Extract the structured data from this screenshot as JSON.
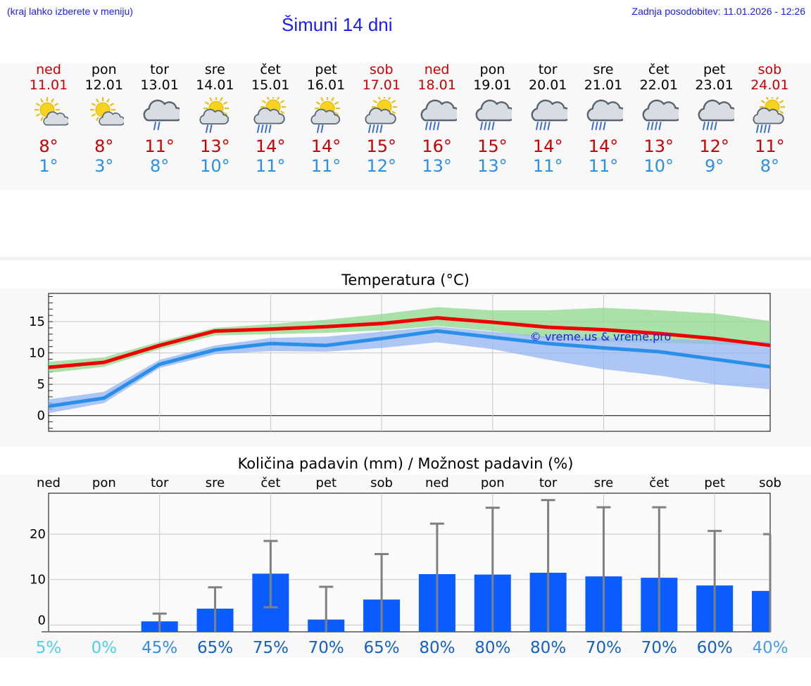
{
  "header": {
    "hint": "(kraj lahko izberete v meniju)",
    "title": "Šimuni 14 dni",
    "updated": "Zadnja posodobitev: 11.01.2026 - 12:26"
  },
  "colors": {
    "weekday": "#000000",
    "weekend": "#cc0000",
    "tmax": "#cc0000",
    "tmin": "#2a8fe8",
    "link": "#1a1aff"
  },
  "days": [
    {
      "name": "ned",
      "date": "11.01",
      "weekend": true,
      "icon": "sun-cloud-icon",
      "tmax": "8°",
      "tmin": "1°"
    },
    {
      "name": "pon",
      "date": "12.01",
      "weekend": false,
      "icon": "sun-cloud-icon",
      "tmax": "8°",
      "tmin": "3°"
    },
    {
      "name": "tor",
      "date": "13.01",
      "weekend": false,
      "icon": "cloud-rain-icon",
      "tmax": "11°",
      "tmin": "8°"
    },
    {
      "name": "sre",
      "date": "14.01",
      "weekend": false,
      "icon": "sun-cloud-rain-icon",
      "tmax": "13°",
      "tmin": "10°"
    },
    {
      "name": "čet",
      "date": "15.01",
      "weekend": false,
      "icon": "sun-cloud-heavy-rain-icon",
      "tmax": "14°",
      "tmin": "11°"
    },
    {
      "name": "pet",
      "date": "16.01",
      "weekend": false,
      "icon": "sun-cloud-rain-icon",
      "tmax": "14°",
      "tmin": "11°"
    },
    {
      "name": "sob",
      "date": "17.01",
      "weekend": true,
      "icon": "sun-cloud-heavy-rain-icon",
      "tmax": "15°",
      "tmin": "12°"
    },
    {
      "name": "ned",
      "date": "18.01",
      "weekend": true,
      "icon": "cloud-heavy-rain-icon",
      "tmax": "16°",
      "tmin": "13°"
    },
    {
      "name": "pon",
      "date": "19.01",
      "weekend": false,
      "icon": "cloud-heavy-rain-icon",
      "tmax": "15°",
      "tmin": "13°"
    },
    {
      "name": "tor",
      "date": "20.01",
      "weekend": false,
      "icon": "cloud-heavy-rain-icon",
      "tmax": "14°",
      "tmin": "11°"
    },
    {
      "name": "sre",
      "date": "21.01",
      "weekend": false,
      "icon": "cloud-heavy-rain-icon",
      "tmax": "14°",
      "tmin": "11°"
    },
    {
      "name": "čet",
      "date": "22.01",
      "weekend": false,
      "icon": "cloud-heavy-rain-icon",
      "tmax": "13°",
      "tmin": "10°"
    },
    {
      "name": "pet",
      "date": "23.01",
      "weekend": false,
      "icon": "cloud-heavy-rain-icon",
      "tmax": "12°",
      "tmin": "9°"
    },
    {
      "name": "sob",
      "date": "24.01",
      "weekend": true,
      "icon": "sun-cloud-heavy-rain-icon",
      "tmax": "11°",
      "tmin": "8°"
    }
  ],
  "chart_data": [
    {
      "type": "line",
      "title": "Temperatura (°C)",
      "watermark": "© vreme.us & vreme.pro",
      "ylim": [
        -2.5,
        19.5
      ],
      "yticks": [
        0,
        5,
        10,
        15
      ],
      "x": [
        0,
        1,
        2,
        3,
        4,
        5,
        6,
        7,
        8,
        9,
        10,
        11,
        12,
        13
      ],
      "series": [
        {
          "name": "max",
          "color": "#ee0000",
          "values": [
            7.7,
            8.5,
            11.2,
            13.5,
            13.8,
            14.2,
            14.7,
            15.6,
            14.9,
            14.1,
            13.7,
            13.1,
            12.3,
            11.2
          ]
        },
        {
          "name": "min",
          "color": "#2a8fe8",
          "values": [
            1.5,
            2.8,
            8.2,
            10.5,
            11.5,
            11.2,
            12.3,
            13.5,
            12.5,
            11.5,
            10.8,
            10.2,
            9.0,
            7.8
          ]
        }
      ],
      "bands": [
        {
          "name": "max-range",
          "color": "#8ed88e",
          "low": [
            6.8,
            7.8,
            10.6,
            12.8,
            13.0,
            13.2,
            13.6,
            14.3,
            13.5,
            12.3,
            11.8,
            11.6,
            11.4,
            11.1
          ],
          "high": [
            8.6,
            9.3,
            11.8,
            14.0,
            14.6,
            15.3,
            16.2,
            17.3,
            16.8,
            16.8,
            17.2,
            16.8,
            16.3,
            15.1
          ]
        },
        {
          "name": "min-range",
          "color": "#94b4f2",
          "low": [
            0.4,
            2.0,
            7.6,
            9.8,
            10.3,
            10.2,
            10.8,
            11.7,
            10.6,
            8.9,
            7.4,
            6.4,
            5.0,
            4.2
          ],
          "high": [
            2.6,
            3.8,
            8.9,
            11.2,
            12.4,
            12.6,
            13.4,
            14.2,
            13.4,
            12.6,
            12.4,
            12.2,
            12.0,
            11.8
          ]
        }
      ]
    },
    {
      "type": "bar",
      "title": "Količina padavin (mm) / Možnost padavin (%)",
      "ylim": [
        -1.5,
        29
      ],
      "yticks": [
        0,
        10,
        20
      ],
      "categories": [
        "ned",
        "pon",
        "tor",
        "sre",
        "čet",
        "pet",
        "sob",
        "ned",
        "pon",
        "tor",
        "sre",
        "čet",
        "pet",
        "sob"
      ],
      "values": [
        0,
        0,
        0.8,
        3.6,
        11.3,
        1.2,
        5.6,
        11.2,
        11.1,
        11.5,
        10.7,
        10.4,
        8.7,
        7.5
      ],
      "error_high": [
        0,
        0,
        2.5,
        8.3,
        18.5,
        8.4,
        15.6,
        22.3,
        25.8,
        27.5,
        25.9,
        25.9,
        20.7,
        20.0
      ],
      "error_low": [
        0,
        0,
        0,
        0,
        3.9,
        0,
        0,
        0,
        0,
        0,
        0,
        0,
        0,
        0
      ],
      "probability": [
        "5%",
        "0%",
        "45%",
        "65%",
        "75%",
        "70%",
        "65%",
        "80%",
        "80%",
        "80%",
        "70%",
        "70%",
        "60%",
        "40%"
      ],
      "probability_values": [
        5,
        0,
        45,
        65,
        75,
        70,
        65,
        80,
        80,
        80,
        70,
        70,
        60,
        40
      ],
      "bar_color": "#0a5cff",
      "error_color": "#808080"
    }
  ]
}
